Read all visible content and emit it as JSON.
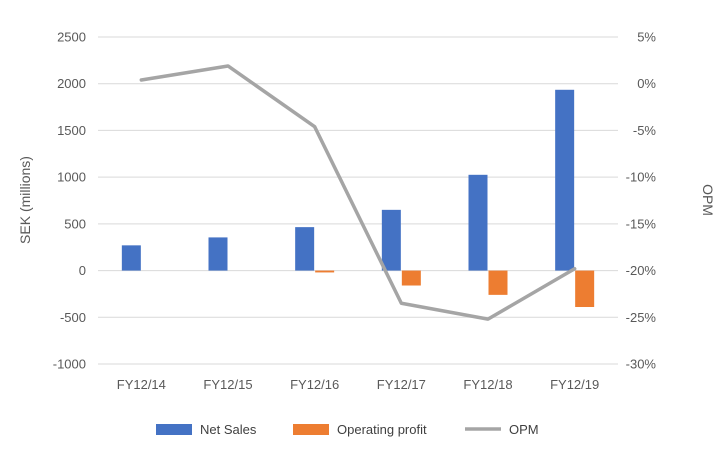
{
  "chart_data": {
    "type": "bar",
    "categories": [
      "FY12/14",
      "FY12/15",
      "FY12/16",
      "FY12/17",
      "FY12/18",
      "FY12/19"
    ],
    "series": [
      {
        "name": "Net Sales",
        "type": "bar",
        "axis": "left",
        "color": "#4472c4",
        "values": [
          270,
          355,
          465,
          650,
          1025,
          1935
        ]
      },
      {
        "name": "Operating profit",
        "type": "bar",
        "axis": "left",
        "color": "#ed7d31",
        "values": [
          0,
          0,
          -20,
          -160,
          -260,
          -390
        ]
      },
      {
        "name": "OPM",
        "type": "line",
        "axis": "right",
        "color": "#a5a5a5",
        "values": [
          0.4,
          1.9,
          -4.6,
          -23.5,
          -25.2,
          -19.8
        ]
      }
    ],
    "ylabel": "SEK (millions)",
    "y2label": "OPM",
    "ylim": [
      -1000,
      2500
    ],
    "y2lim": [
      -30,
      5
    ],
    "yticks": [
      "2500",
      "2000",
      "1500",
      "1000",
      "500",
      "0",
      "-500",
      "-1000"
    ],
    "y2ticks": [
      "5%",
      "0%",
      "-5%",
      "-10%",
      "-15%",
      "-20%",
      "-25%",
      "-30%"
    ],
    "grid": true,
    "legend": "bottom"
  }
}
